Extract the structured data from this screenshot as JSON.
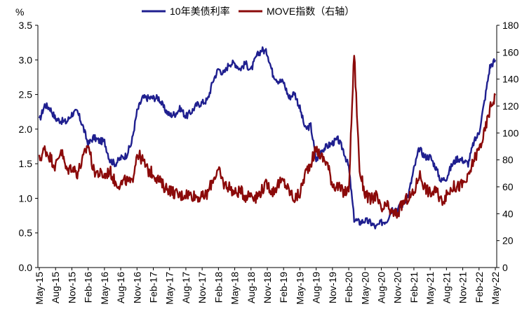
{
  "chart_data": {
    "type": "line",
    "y_left_unit": "%",
    "ylim_left": [
      0.0,
      3.5
    ],
    "ylim_right": [
      0,
      180
    ],
    "y_left_ticks": [
      "0.0",
      "0.5",
      "1.0",
      "1.5",
      "2.0",
      "2.5",
      "3.0",
      "3.5"
    ],
    "y_right_ticks": [
      "0",
      "20",
      "40",
      "60",
      "80",
      "100",
      "120",
      "140",
      "160",
      "180"
    ],
    "x_tick_labels": [
      "May-15",
      "Aug-15",
      "Nov-15",
      "Feb-16",
      "May-16",
      "Aug-16",
      "Nov-16",
      "Feb-17",
      "May-17",
      "Aug-17",
      "Nov-17",
      "Feb-18",
      "May-18",
      "Aug-18",
      "Nov-18",
      "Feb-19",
      "May-19",
      "Aug-19",
      "Nov-19",
      "Feb-20",
      "May-20",
      "Aug-20",
      "Nov-20",
      "Feb-21",
      "May-21",
      "Aug-21",
      "Nov-21",
      "Feb-22",
      "May-22"
    ],
    "legend": "top",
    "grid": false,
    "series": [
      {
        "name": "10年美债利率",
        "axis": "left",
        "color": "#1f1f8f",
        "x": [
          "2015-05",
          "2015-06",
          "2015-07",
          "2015-08",
          "2015-09",
          "2015-10",
          "2015-11",
          "2015-12",
          "2016-01",
          "2016-02",
          "2016-03",
          "2016-04",
          "2016-05",
          "2016-06",
          "2016-07",
          "2016-08",
          "2016-09",
          "2016-10",
          "2016-11",
          "2016-12",
          "2017-01",
          "2017-02",
          "2017-03",
          "2017-04",
          "2017-05",
          "2017-06",
          "2017-07",
          "2017-08",
          "2017-09",
          "2017-10",
          "2017-11",
          "2017-12",
          "2018-01",
          "2018-02",
          "2018-03",
          "2018-04",
          "2018-05",
          "2018-06",
          "2018-07",
          "2018-08",
          "2018-09",
          "2018-10",
          "2018-11",
          "2018-12",
          "2019-01",
          "2019-02",
          "2019-03",
          "2019-04",
          "2019-05",
          "2019-06",
          "2019-07",
          "2019-08",
          "2019-09",
          "2019-10",
          "2019-11",
          "2019-12",
          "2020-01",
          "2020-02",
          "2020-03",
          "2020-04",
          "2020-05",
          "2020-06",
          "2020-07",
          "2020-08",
          "2020-09",
          "2020-10",
          "2020-11",
          "2020-12",
          "2021-01",
          "2021-02",
          "2021-03",
          "2021-04",
          "2021-05",
          "2021-06",
          "2021-07",
          "2021-08",
          "2021-09",
          "2021-10",
          "2021-11",
          "2021-12",
          "2022-01",
          "2022-02",
          "2022-03",
          "2022-04",
          "2022-05"
        ],
        "values": [
          2.12,
          2.35,
          2.3,
          2.15,
          2.12,
          2.1,
          2.22,
          2.25,
          2.05,
          1.78,
          1.88,
          1.83,
          1.82,
          1.55,
          1.5,
          1.58,
          1.62,
          1.8,
          2.25,
          2.45,
          2.45,
          2.45,
          2.45,
          2.3,
          2.2,
          2.22,
          2.3,
          2.18,
          2.25,
          2.35,
          2.38,
          2.42,
          2.7,
          2.87,
          2.8,
          2.95,
          2.95,
          2.87,
          2.95,
          2.85,
          3.05,
          3.15,
          3.1,
          2.8,
          2.7,
          2.68,
          2.45,
          2.53,
          2.3,
          2.0,
          2.05,
          1.55,
          1.7,
          1.75,
          1.8,
          1.85,
          1.7,
          1.45,
          0.7,
          0.65,
          0.68,
          0.65,
          0.58,
          0.65,
          0.68,
          0.85,
          0.85,
          0.92,
          1.05,
          1.42,
          1.72,
          1.6,
          1.6,
          1.45,
          1.25,
          1.3,
          1.48,
          1.58,
          1.55,
          1.5,
          1.8,
          1.95,
          2.4,
          2.9,
          3.0
        ]
      },
      {
        "name": "MOVE指数（右轴）",
        "axis": "right",
        "color": "#8b0a0a",
        "x": [
          "2015-05",
          "2015-06",
          "2015-07",
          "2015-08",
          "2015-09",
          "2015-10",
          "2015-11",
          "2015-12",
          "2016-01",
          "2016-02",
          "2016-03",
          "2016-04",
          "2016-05",
          "2016-06",
          "2016-07",
          "2016-08",
          "2016-09",
          "2016-10",
          "2016-11",
          "2016-12",
          "2017-01",
          "2017-02",
          "2017-03",
          "2017-04",
          "2017-05",
          "2017-06",
          "2017-07",
          "2017-08",
          "2017-09",
          "2017-10",
          "2017-11",
          "2017-12",
          "2018-01",
          "2018-02",
          "2018-03",
          "2018-04",
          "2018-05",
          "2018-06",
          "2018-07",
          "2018-08",
          "2018-09",
          "2018-10",
          "2018-11",
          "2018-12",
          "2019-01",
          "2019-02",
          "2019-03",
          "2019-04",
          "2019-05",
          "2019-06",
          "2019-07",
          "2019-08",
          "2019-09",
          "2019-10",
          "2019-11",
          "2019-12",
          "2020-01",
          "2020-02",
          "2020-03",
          "2020-04",
          "2020-05",
          "2020-06",
          "2020-07",
          "2020-08",
          "2020-09",
          "2020-10",
          "2020-11",
          "2020-12",
          "2021-01",
          "2021-02",
          "2021-03",
          "2021-04",
          "2021-05",
          "2021-06",
          "2021-07",
          "2021-08",
          "2021-09",
          "2021-10",
          "2021-11",
          "2021-12",
          "2022-01",
          "2022-02",
          "2022-03",
          "2022-04",
          "2022-05"
        ],
        "values": [
          80,
          88,
          82,
          75,
          88,
          72,
          75,
          70,
          80,
          92,
          72,
          70,
          68,
          72,
          63,
          62,
          65,
          62,
          85,
          80,
          72,
          70,
          65,
          60,
          58,
          55,
          53,
          55,
          54,
          53,
          52,
          55,
          66,
          72,
          62,
          60,
          55,
          57,
          53,
          55,
          52,
          58,
          62,
          56,
          62,
          64,
          57,
          51,
          55,
          70,
          78,
          88,
          82,
          78,
          62,
          60,
          56,
          57,
          160,
          72,
          55,
          50,
          54,
          42,
          46,
          40,
          40,
          48,
          52,
          55,
          70,
          60,
          55,
          57,
          50,
          53,
          60,
          60,
          62,
          66,
          80,
          88,
          100,
          118,
          128
        ]
      }
    ]
  }
}
